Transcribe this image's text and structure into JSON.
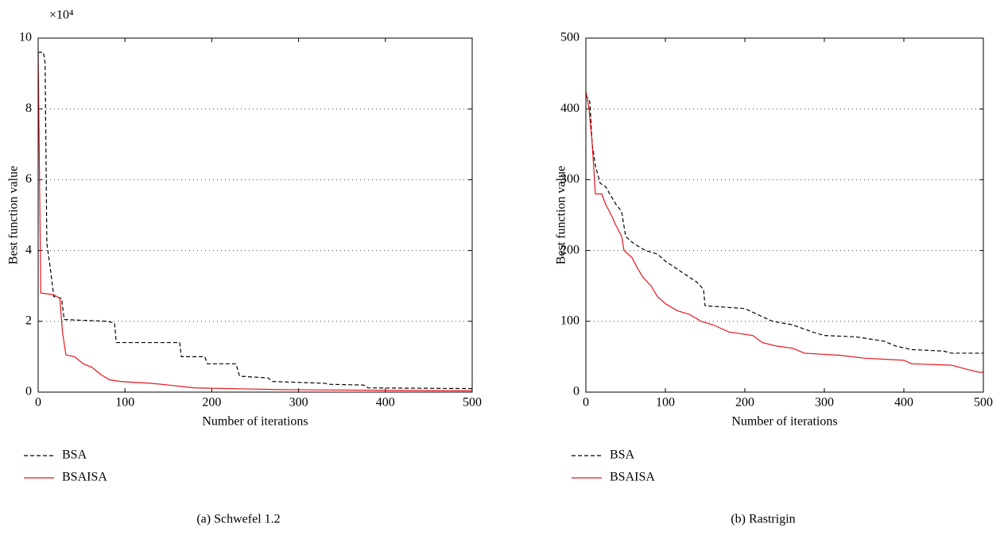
{
  "chart_data": [
    {
      "type": "line",
      "caption": "(a)  Schwefel 1.2",
      "y_label": "Best function value",
      "x_label": "Number of iterations",
      "y_multiplier": "×10⁴",
      "xlim": [
        0,
        500
      ],
      "xticks": [
        0,
        100,
        200,
        300,
        400,
        500
      ],
      "ylim": [
        0,
        10
      ],
      "yticks": [
        0,
        2,
        4,
        6,
        8,
        10
      ],
      "grid": "y",
      "legend": "below-left",
      "series": [
        {
          "name": "BSA",
          "color": "#000000",
          "dash": true,
          "x": [
            0,
            6,
            8,
            10,
            14,
            18,
            27,
            30,
            80,
            88,
            90,
            163,
            165,
            192,
            195,
            228,
            232,
            265,
            270,
            330,
            335,
            375,
            380,
            500
          ],
          "values": [
            9.6,
            9.6,
            9.3,
            4.2,
            3.5,
            2.7,
            2.65,
            2.05,
            2.0,
            1.95,
            1.4,
            1.4,
            1.0,
            1.0,
            0.8,
            0.8,
            0.45,
            0.4,
            0.3,
            0.25,
            0.22,
            0.2,
            0.12,
            0.1
          ]
        },
        {
          "name": "BSAISA",
          "color": "#e8141c",
          "dash": false,
          "x": [
            0,
            3,
            18,
            25,
            28,
            32,
            42,
            52,
            62,
            72,
            82,
            95,
            130,
            150,
            180,
            220,
            280,
            400,
            500
          ],
          "values": [
            9.6,
            2.8,
            2.75,
            2.65,
            1.7,
            1.05,
            1.0,
            0.8,
            0.7,
            0.5,
            0.35,
            0.3,
            0.25,
            0.2,
            0.12,
            0.1,
            0.07,
            0.05,
            0.04
          ]
        }
      ]
    },
    {
      "type": "line",
      "caption": "(b)  Rastrigin",
      "y_label": "Best function value",
      "x_label": "Number of iterations",
      "xlim": [
        0,
        500
      ],
      "xticks": [
        0,
        100,
        200,
        300,
        400,
        500
      ],
      "ylim": [
        0,
        500
      ],
      "yticks": [
        0,
        100,
        200,
        300,
        400,
        500
      ],
      "grid": "y",
      "legend": "below-left",
      "series": [
        {
          "name": "BSA",
          "color": "#000000",
          "dash": true,
          "x": [
            0,
            5,
            8,
            12,
            18,
            25,
            30,
            38,
            45,
            50,
            60,
            75,
            90,
            100,
            120,
            140,
            148,
            150,
            175,
            200,
            225,
            235,
            260,
            285,
            300,
            340,
            375,
            390,
            410,
            450,
            460,
            500
          ],
          "values": [
            420,
            410,
            350,
            320,
            295,
            290,
            280,
            265,
            255,
            220,
            210,
            200,
            195,
            185,
            170,
            155,
            145,
            122,
            120,
            118,
            105,
            100,
            95,
            85,
            80,
            78,
            72,
            65,
            60,
            58,
            55,
            55
          ]
        },
        {
          "name": "BSAISA",
          "color": "#e8141c",
          "dash": false,
          "x": [
            0,
            4,
            8,
            12,
            20,
            25,
            32,
            38,
            45,
            48,
            58,
            65,
            72,
            82,
            90,
            100,
            115,
            130,
            145,
            160,
            180,
            210,
            222,
            240,
            260,
            275,
            320,
            350,
            400,
            410,
            460,
            480,
            495,
            500
          ],
          "values": [
            425,
            400,
            350,
            280,
            280,
            265,
            250,
            235,
            220,
            200,
            190,
            175,
            162,
            150,
            135,
            125,
            115,
            110,
            100,
            95,
            85,
            80,
            70,
            65,
            62,
            55,
            52,
            48,
            45,
            40,
            38,
            32,
            28,
            28
          ]
        }
      ]
    }
  ]
}
